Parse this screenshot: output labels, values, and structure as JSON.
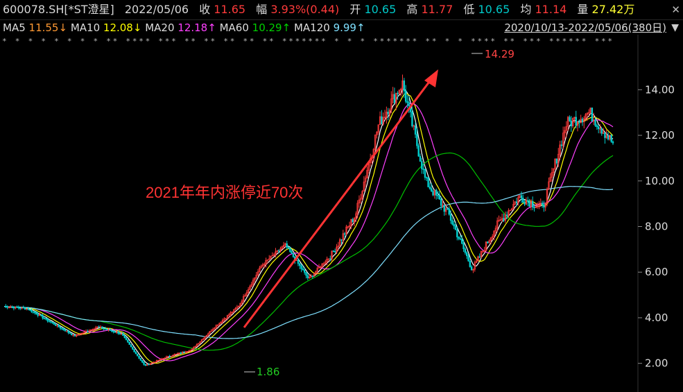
{
  "header": {
    "code_name": "600078.SH[*ST澄星]",
    "date": "2022/05/06",
    "close_label": "收",
    "close_value": "11.65",
    "change_label": "幅",
    "change_value": "3.93%(0.44)",
    "open_label": "开",
    "open_value": "10.65",
    "high_label": "高",
    "high_value": "11.77",
    "low_label": "低",
    "low_value": "10.65",
    "avg_label": "均",
    "avg_value": "11.14",
    "vol_label": "量",
    "vol_value": "27.42万",
    "close_icon": "close-icon"
  },
  "ma_bar": {
    "ma5_label": "MA5",
    "ma5_value": "11.55↓",
    "ma10_label": "MA10",
    "ma10_value": "12.08↓",
    "ma20_label": "MA20",
    "ma20_value": "12.18↑",
    "ma60_label": "MA60",
    "ma60_value": "10.29↑",
    "ma120_label": "MA120",
    "ma120_value": "9.99↑",
    "range_text": "2020/10/13-2022/05/06(380日)",
    "dropdown_icon": "triangle-down-icon"
  },
  "colors": {
    "up": "#ff3b3b",
    "down": "#00d0d0",
    "ma5": "#ffffff",
    "ma10": "#ffff00",
    "ma20": "#ff40ff",
    "ma60": "#00c000",
    "ma120": "#7fe0ff",
    "annotation": "#ff3333",
    "low_marker": "#22cc22"
  },
  "chart_data": {
    "type": "candlestick",
    "y_ticks": [
      "14.00",
      "12.00",
      "10.00",
      "8.00",
      "6.00",
      "4.00",
      "2.00"
    ],
    "ylim": [
      1.2,
      15.5
    ],
    "max_marker": "14.29",
    "min_marker": "1.86",
    "annotation_text": "2021年年内涨停近70次",
    "key_prices": [
      4.5,
      4.4,
      3.8,
      3.2,
      3.6,
      3.3,
      1.9,
      2.3,
      2.6,
      3.6,
      4.5,
      6.3,
      7.2,
      5.7,
      6.8,
      8.5,
      12.5,
      14.3,
      10.0,
      8.5,
      6.1,
      8.0,
      9.3,
      8.8,
      12.5,
      13.0,
      11.65
    ]
  },
  "star_row": "*  *   *        *  *         *         * *           ** **** *** ** ** ** ** ** ******* * * * ******* ** * * **** ** *** ****** ***"
}
